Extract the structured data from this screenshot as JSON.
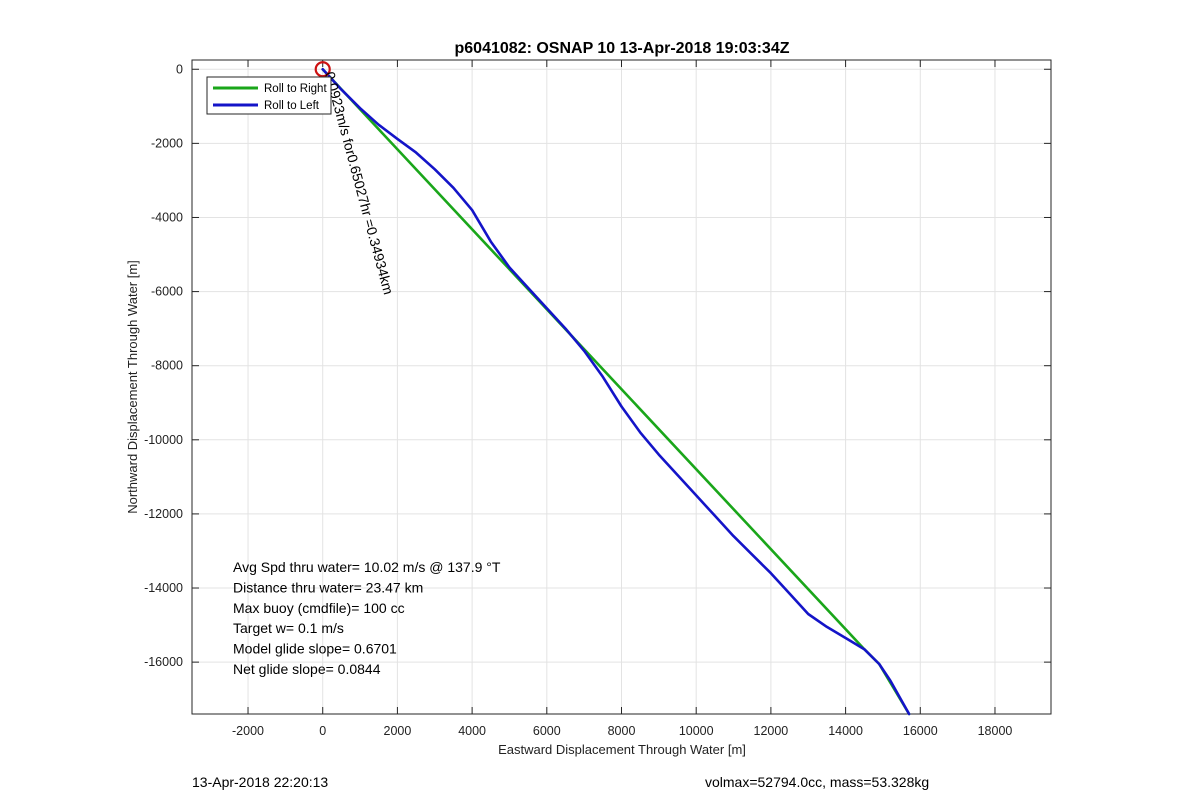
{
  "chart_data": {
    "type": "line",
    "title": "p6041082: OSNAP 10 13-Apr-2018 19:03:34Z",
    "xlabel": "Eastward Displacement Through Water [m]",
    "ylabel": "Northward Displacement Through Water [m]",
    "xlim": [
      -3500,
      19500
    ],
    "ylim": [
      -17400,
      250
    ],
    "xticks": [
      -2000,
      0,
      2000,
      4000,
      6000,
      8000,
      10000,
      12000,
      14000,
      16000,
      18000
    ],
    "xtick_labels": [
      "-2000",
      "0",
      "2000",
      "4000",
      "6000",
      "8000",
      "10000",
      "12000",
      "14000",
      "16000",
      "18000"
    ],
    "yticks": [
      0,
      -2000,
      -4000,
      -6000,
      -8000,
      -10000,
      -12000,
      -14000,
      -16000
    ],
    "ytick_labels": [
      "0",
      "-2000",
      "-4000",
      "-6000",
      "-8000",
      "-10000",
      "-12000",
      "-14000",
      "-16000"
    ],
    "grid": true,
    "legend_position": "top-left",
    "series": [
      {
        "name": "Roll to Right",
        "color": "#1aa61a",
        "x": [
          0,
          14500,
          14900,
          15700
        ],
        "y": [
          0,
          -15650,
          -16050,
          -17400
        ]
      },
      {
        "name": "Roll to Left",
        "color": "#1414c8",
        "x": [
          0,
          500,
          1000,
          1500,
          2000,
          2500,
          3000,
          3500,
          4000,
          4500,
          5000,
          5500,
          6000,
          6500,
          7000,
          7500,
          8000,
          8500,
          9000,
          9500,
          10000,
          10500,
          11000,
          11500,
          12000,
          12500,
          13000,
          13500,
          14000,
          14500,
          14900,
          15200,
          15700
        ],
        "y": [
          0,
          -550,
          -1050,
          -1500,
          -1880,
          -2250,
          -2700,
          -3200,
          -3800,
          -4650,
          -5350,
          -5900,
          -6450,
          -7000,
          -7600,
          -8300,
          -9100,
          -9800,
          -10400,
          -10950,
          -11500,
          -12050,
          -12600,
          -13100,
          -13600,
          -14150,
          -14700,
          -15050,
          -15350,
          -15650,
          -16050,
          -16500,
          -17400
        ]
      }
    ],
    "current_label": "0.0923m/s for0.65027hr =0.34934km",
    "start_marker_color": "#cc1111",
    "notes": [
      "Avg Spd thru water= 10.02 m/s @ 137.9 °T",
      "Distance thru water= 23.47 km",
      "Max buoy (cmdfile)= 100 cc",
      "Target w= 0.1 m/s",
      "Model glide slope= 0.6701",
      "Net glide slope= 0.0844"
    ]
  },
  "footer": {
    "timestamp": "13-Apr-2018 22:20:13",
    "summary": "volmax=52794.0cc, mass=53.328kg"
  }
}
